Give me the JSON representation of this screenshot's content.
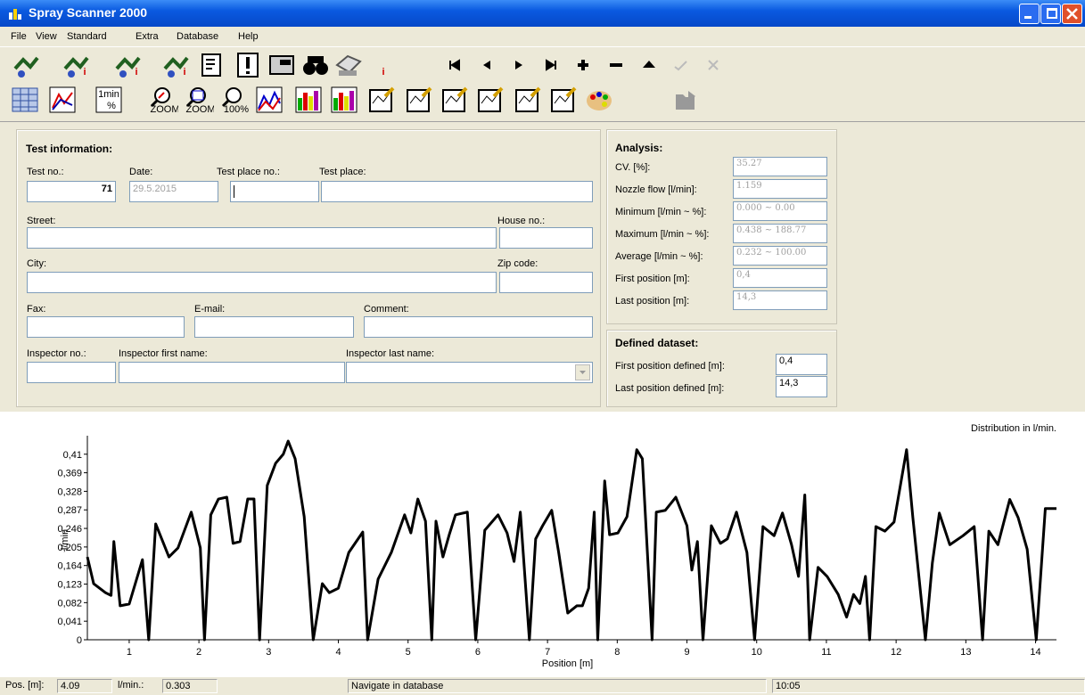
{
  "window": {
    "title": "Spray Scanner 2000"
  },
  "menu": [
    "File",
    "View",
    "Standard",
    "Extra",
    "Database",
    "Help"
  ],
  "toolbar_labels": [
    "1min",
    "%",
    "ZOOM",
    "ZOOM",
    "100%"
  ],
  "test_information": {
    "heading": "Test information:",
    "fields": [
      {
        "label": "Test no.:",
        "value": "71"
      },
      {
        "label": "Date:",
        "value": "29.5.2015"
      },
      {
        "label": "Test place no.:"
      },
      {
        "label": "Test place:"
      },
      {
        "label": "Street:"
      },
      {
        "label": "House no.:"
      },
      {
        "label": "City:"
      },
      {
        "label": "Zip code:"
      },
      {
        "label": "Fax:"
      },
      {
        "label": "E-mail:"
      },
      {
        "label": "Comment:"
      },
      {
        "label": "Inspector no.:"
      },
      {
        "label": "Inspector first name:"
      },
      {
        "label": "Inspector last name:"
      }
    ]
  },
  "analysis": {
    "heading": "Analysis:",
    "rows": [
      {
        "label": "CV. [%]:",
        "value": "35.27"
      },
      {
        "label": "Nozzle flow [l/min]:",
        "value": "1.159"
      },
      {
        "label": "Minimum [l/min ~ %]:",
        "value": "0.000 ~ 0.00"
      },
      {
        "label": "Maximum [l/min ~ %]:",
        "value": "0.438 ~ 188.77"
      },
      {
        "label": "Average [l/min ~ %]:",
        "value": "0.232 ~ 100.00"
      },
      {
        "label": "First position [m]:",
        "value": "0,4"
      },
      {
        "label": "Last position [m]:",
        "value": "14,3"
      }
    ]
  },
  "defined_dataset": {
    "heading": "Defined dataset:",
    "rows": [
      {
        "label": "First position defined [m]:",
        "value": "0,4"
      },
      {
        "label": "Last position defined [m]:",
        "value": "14,3"
      }
    ]
  },
  "chart_data": {
    "type": "line",
    "title": "Distribution in l/min.",
    "x_label": "Position [m]",
    "y_label": "l/min",
    "color": "#000000",
    "xlim": [
      0.4,
      14.3
    ],
    "ylim": [
      0,
      0.443
    ],
    "xticks": [
      1,
      2,
      3,
      4,
      5,
      6,
      7,
      8,
      9,
      10,
      11,
      12,
      13,
      14
    ],
    "yticks": [
      0,
      {
        "value": 0.041,
        "label": "0,041"
      },
      {
        "value": 0.082,
        "label": "0,082"
      },
      {
        "value": 0.123,
        "label": "0,123"
      },
      {
        "value": 0.164,
        "label": "0,164"
      },
      {
        "value": 0.205,
        "label": "0,205"
      },
      {
        "value": 0.246,
        "label": "0,246"
      },
      {
        "value": 0.287,
        "label": "0,287"
      },
      {
        "value": 0.328,
        "label": "0,328"
      },
      {
        "value": 0.369,
        "label": "0,369"
      },
      {
        "value": 0.41,
        "label": "0,41"
      }
    ],
    "x": [
      0.4,
      0.49,
      0.66,
      0.74,
      0.78,
      0.87,
      1.0,
      1.19,
      1.28,
      1.38,
      1.57,
      1.7,
      1.89,
      2.02,
      2.08,
      2.17,
      2.28,
      2.4,
      2.49,
      2.59,
      2.7,
      2.79,
      2.87,
      2.98,
      3.1,
      3.21,
      3.28,
      3.38,
      3.51,
      3.64,
      3.77,
      3.87,
      4.0,
      4.15,
      4.35,
      4.42,
      4.57,
      4.76,
      4.95,
      5.04,
      5.14,
      5.25,
      5.34,
      5.4,
      5.5,
      5.59,
      5.68,
      5.85,
      5.97,
      6.1,
      6.29,
      6.42,
      6.52,
      6.61,
      6.74,
      6.83,
      6.93,
      7.06,
      7.16,
      7.29,
      7.42,
      7.5,
      7.59,
      7.67,
      7.72,
      7.82,
      7.89,
      8.01,
      8.14,
      8.28,
      8.36,
      8.5,
      8.56,
      8.69,
      8.84,
      9.0,
      9.07,
      9.15,
      9.23,
      9.35,
      9.48,
      9.58,
      9.71,
      9.86,
      9.97,
      10.09,
      10.25,
      10.37,
      10.5,
      10.6,
      10.69,
      10.76,
      10.88,
      11.01,
      11.17,
      11.29,
      11.39,
      11.48,
      11.56,
      11.62,
      11.71,
      11.84,
      11.97,
      12.15,
      12.24,
      12.42,
      12.52,
      12.62,
      12.77,
      12.96,
      13.12,
      13.24,
      13.33,
      13.46,
      13.63,
      13.75,
      13.88,
      14.01,
      14.14,
      14.3
    ],
    "values": [
      0.183,
      0.124,
      0.104,
      0.098,
      0.217,
      0.075,
      0.079,
      0.177,
      0,
      0.256,
      0.183,
      0.203,
      0.282,
      0.203,
      0,
      0.276,
      0.311,
      0.315,
      0.213,
      0.217,
      0.311,
      0.311,
      0,
      0.341,
      0.39,
      0.41,
      0.439,
      0.4,
      0.272,
      0,
      0.124,
      0.104,
      0.114,
      0.193,
      0.238,
      0,
      0.134,
      0.193,
      0.276,
      0.236,
      0.311,
      0.262,
      0,
      0.262,
      0.183,
      0.232,
      0.276,
      0.282,
      0,
      0.242,
      0.276,
      0.236,
      0.173,
      0.282,
      0,
      0.223,
      0.252,
      0.286,
      0.193,
      0.059,
      0.075,
      0.075,
      0.114,
      0.282,
      0,
      0.351,
      0.232,
      0.236,
      0.272,
      0.42,
      0.4,
      0,
      0.282,
      0.286,
      0.315,
      0.252,
      0.154,
      0.217,
      0,
      0.252,
      0.213,
      0.223,
      0.282,
      0.193,
      0,
      0.25,
      0.23,
      0.28,
      0.21,
      0.14,
      0.32,
      0,
      0.16,
      0.14,
      0.1,
      0.05,
      0.1,
      0.08,
      0.14,
      0,
      0.25,
      0.24,
      0.26,
      0.42,
      0.27,
      0,
      0.17,
      0.28,
      0.21,
      0.23,
      0.25,
      0,
      0.24,
      0.21,
      0.31,
      0.27,
      0.2,
      0,
      0.29,
      0.29
    ]
  },
  "status_bar": {
    "pos_label": "Pos. [m]:",
    "pos_value": "4.09",
    "flow_label": "l/min.:",
    "flow_value": "0.303",
    "message": "Navigate in database",
    "time": "10:05"
  }
}
